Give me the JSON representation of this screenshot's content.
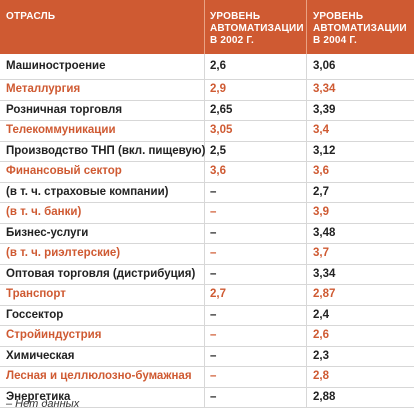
{
  "table": {
    "header": {
      "industry": "ОТРАСЛЬ",
      "year_2002": "УРОВЕНЬ АВТОМАТИЗАЦИИ В 2002 Г.",
      "year_2004": "УРОВЕНЬ АВТОМАТИЗАЦИИ В 2004 Г."
    },
    "rows": [
      {
        "name": "Машиностроение",
        "v2002": "2,6",
        "v2004": "3,06",
        "accent": false
      },
      {
        "name": "Металлургия",
        "v2002": "2,9",
        "v2004": "3,34",
        "accent": true
      },
      {
        "name": "Розничная торговля",
        "v2002": "2,65",
        "v2004": "3,39",
        "accent": false
      },
      {
        "name": "Телекоммуникации",
        "v2002": "3,05",
        "v2004": "3,4",
        "accent": true
      },
      {
        "name": "Производство ТНП (вкл. пищевую)",
        "v2002": "2,5",
        "v2004": "3,12",
        "accent": false
      },
      {
        "name": "Финансовый сектор",
        "v2002": "3,6",
        "v2004": "3,6",
        "accent": true
      },
      {
        "name": "(в т. ч. страховые компании)",
        "v2002": "–",
        "v2004": "2,7",
        "accent": false
      },
      {
        "name": "(в т. ч. банки)",
        "v2002": "–",
        "v2004": "3,9",
        "accent": true
      },
      {
        "name": "Бизнес-услуги",
        "v2002": "–",
        "v2004": "3,48",
        "accent": false
      },
      {
        "name": "(в т. ч. риэлтерские)",
        "v2002": "–",
        "v2004": "3,7",
        "accent": true
      },
      {
        "name": "Оптовая торговля (дистрибуция)",
        "v2002": "–",
        "v2004": "3,34",
        "accent": false
      },
      {
        "name": "Транспорт",
        "v2002": "2,7",
        "v2004": "2,87",
        "accent": true
      },
      {
        "name": "Госсектор",
        "v2002": "–",
        "v2004": "2,4",
        "accent": false
      },
      {
        "name": "Стройиндустрия",
        "v2002": "–",
        "v2004": "2,6",
        "accent": true
      },
      {
        "name": "Химическая",
        "v2002": "–",
        "v2004": "2,3",
        "accent": false
      },
      {
        "name": "Лесная и целлюлозно-бумажная",
        "v2002": "–",
        "v2004": "2,8",
        "accent": true
      },
      {
        "name": "Энергетика",
        "v2002": "–",
        "v2004": "2,88",
        "accent": false
      }
    ],
    "footnote": "– Нет данных"
  },
  "colors": {
    "accent": "#cf5a32",
    "text": "#222222",
    "header_bg": "#cf5a32"
  }
}
